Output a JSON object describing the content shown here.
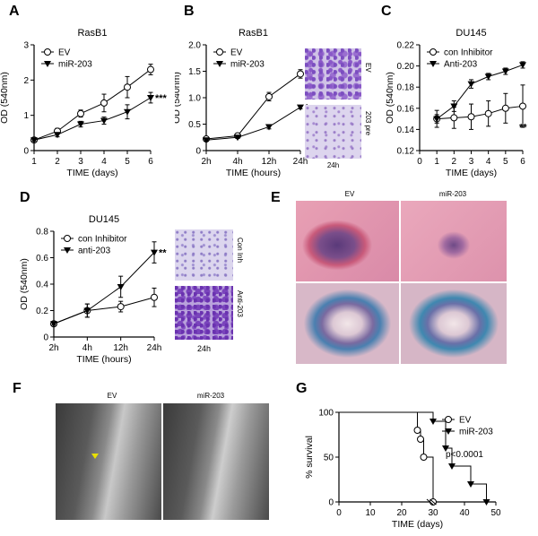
{
  "panels": {
    "A": "A",
    "B": "B",
    "C": "C",
    "D": "D",
    "E": "E",
    "F": "F",
    "G": "G"
  },
  "chart_data": [
    {
      "id": "A",
      "type": "line",
      "title": "RasB1",
      "xlabel": "TIME (days)",
      "ylabel": "OD (540nm)",
      "x": [
        1,
        2,
        3,
        4,
        5,
        6
      ],
      "xticks": [
        "1",
        "2",
        "3",
        "4",
        "5",
        "6"
      ],
      "xlim": [
        1,
        6
      ],
      "ylim": [
        0,
        3
      ],
      "yticks": [
        "0",
        "1",
        "2",
        "3"
      ],
      "yticksVal": [
        0,
        1,
        2,
        3
      ],
      "series": [
        {
          "name": "EV",
          "marker": "circle",
          "values": [
            0.3,
            0.55,
            1.05,
            1.35,
            1.8,
            2.3
          ],
          "err": [
            0.05,
            0.08,
            0.1,
            0.25,
            0.3,
            0.15
          ]
        },
        {
          "name": "miR-203",
          "marker": "triangle",
          "values": [
            0.3,
            0.45,
            0.75,
            0.85,
            1.1,
            1.5
          ],
          "err": [
            0.04,
            0.06,
            0.08,
            0.1,
            0.2,
            0.15
          ]
        }
      ],
      "annotation": "***",
      "legend": "top-left"
    },
    {
      "id": "B",
      "type": "line",
      "title": "RasB1",
      "xlabel": "TIME (hours)",
      "ylabel": "OD (540nm)",
      "x": [
        0,
        1,
        2,
        3
      ],
      "xticks": [
        "2h",
        "4h",
        "12h",
        "24h"
      ],
      "xlim": [
        0,
        3
      ],
      "ylim": [
        0,
        2
      ],
      "yticks": [
        "0",
        "0.5",
        "1.0",
        "1.5",
        "2.0"
      ],
      "yticksVal": [
        0,
        0.5,
        1.0,
        1.5,
        2.0
      ],
      "series": [
        {
          "name": "EV",
          "marker": "circle",
          "values": [
            0.22,
            0.28,
            1.02,
            1.45
          ],
          "err": [
            0.03,
            0.03,
            0.08,
            0.08
          ]
        },
        {
          "name": "miR-203",
          "marker": "triangle",
          "values": [
            0.2,
            0.25,
            0.45,
            0.82
          ],
          "err": [
            0.02,
            0.02,
            0.04,
            0.03
          ]
        }
      ],
      "annotation": "***",
      "legend": "top-left"
    },
    {
      "id": "C",
      "type": "line",
      "title": "DU145",
      "xlabel": "TIME (days)",
      "ylabel": "OD (540nm)",
      "x": [
        1,
        2,
        3,
        4,
        5,
        6
      ],
      "xticks": [
        "0",
        "1",
        "2",
        "3",
        "4",
        "5",
        "6"
      ],
      "xtickVals": [
        0,
        1,
        2,
        3,
        4,
        5,
        6
      ],
      "xlim": [
        0,
        6
      ],
      "ylim": [
        0.12,
        0.22
      ],
      "yticks": [
        "0.12",
        "0.14",
        "0.16",
        "0.18",
        "0.20",
        "0.22"
      ],
      "yticksVal": [
        0.12,
        0.14,
        0.16,
        0.18,
        0.2,
        0.22
      ],
      "series": [
        {
          "name": "con Inhibitor",
          "marker": "circle",
          "values": [
            0.15,
            0.151,
            0.152,
            0.155,
            0.16,
            0.162
          ],
          "err": [
            0.008,
            0.01,
            0.012,
            0.012,
            0.014,
            0.02
          ]
        },
        {
          "name": "Anti-203",
          "marker": "triangle",
          "values": [
            0.15,
            0.162,
            0.183,
            0.19,
            0.195,
            0.201
          ],
          "err": [
            0.004,
            0.005,
            0.004,
            0.003,
            0.003,
            0.003
          ]
        }
      ],
      "annotation": "**",
      "legend": "top-left"
    },
    {
      "id": "D",
      "type": "line",
      "title": "DU145",
      "xlabel": "TIME (hours)",
      "ylabel": "OD (540nm)",
      "x": [
        0,
        1,
        2,
        3
      ],
      "xticks": [
        "2h",
        "4h",
        "12h",
        "24h"
      ],
      "xlim": [
        0,
        3
      ],
      "ylim": [
        0,
        0.8
      ],
      "yticks": [
        "0",
        "0.2",
        "0.4",
        "0.6",
        "0.8"
      ],
      "yticksVal": [
        0,
        0.2,
        0.4,
        0.6,
        0.8
      ],
      "series": [
        {
          "name": "con Inhibitor",
          "marker": "circle",
          "values": [
            0.1,
            0.2,
            0.23,
            0.3
          ],
          "err": [
            0.01,
            0.05,
            0.04,
            0.07
          ]
        },
        {
          "name": "anti-203",
          "marker": "triangle",
          "values": [
            0.1,
            0.2,
            0.38,
            0.64
          ],
          "err": [
            0.01,
            0.05,
            0.08,
            0.08
          ]
        }
      ],
      "annotation": "**",
      "legend": "top-left"
    },
    {
      "id": "G",
      "type": "line",
      "title": "",
      "xlabel": "TIME (days)",
      "ylabel": "% survival",
      "x": [],
      "xticks": [
        "0",
        "10",
        "20",
        "30",
        "40",
        "50"
      ],
      "xtickVals": [
        0,
        10,
        20,
        30,
        40,
        50
      ],
      "xlim": [
        0,
        50
      ],
      "ylim": [
        0,
        100
      ],
      "yticks": [
        "0",
        "50",
        "100"
      ],
      "yticksVal": [
        0,
        50,
        100
      ],
      "series": [
        {
          "name": "EV",
          "marker": "circle",
          "steps": [
            [
              0,
              100
            ],
            [
              25,
              100
            ],
            [
              25,
              80
            ],
            [
              26,
              80
            ],
            [
              26,
              70
            ],
            [
              27,
              70
            ],
            [
              27,
              50
            ],
            [
              30,
              50
            ],
            [
              30,
              0
            ]
          ],
          "points": [
            [
              25,
              80
            ],
            [
              26,
              70
            ],
            [
              27,
              50
            ],
            [
              30,
              0
            ]
          ]
        },
        {
          "name": "miR-203",
          "marker": "triangle",
          "steps": [
            [
              0,
              100
            ],
            [
              30,
              100
            ],
            [
              30,
              90
            ],
            [
              34,
              90
            ],
            [
              34,
              60
            ],
            [
              36,
              60
            ],
            [
              36,
              40
            ],
            [
              42,
              40
            ],
            [
              42,
              20
            ],
            [
              47,
              20
            ],
            [
              47,
              0
            ]
          ],
          "points": [
            [
              30,
              90
            ],
            [
              34,
              60
            ],
            [
              36,
              40
            ],
            [
              42,
              20
            ],
            [
              47,
              0
            ]
          ]
        }
      ],
      "annotation": "p<0.0001",
      "legend": "top-right"
    }
  ],
  "images": {
    "B": {
      "top": "EV",
      "bottom": "203 pre",
      "caption": "24h"
    },
    "D": {
      "top": "Con Inh",
      "bottom": "Anti-203",
      "caption": "24h"
    },
    "E": {
      "left": "EV",
      "right": "miR-203"
    },
    "F": {
      "left": "EV",
      "right": "miR-203"
    }
  }
}
